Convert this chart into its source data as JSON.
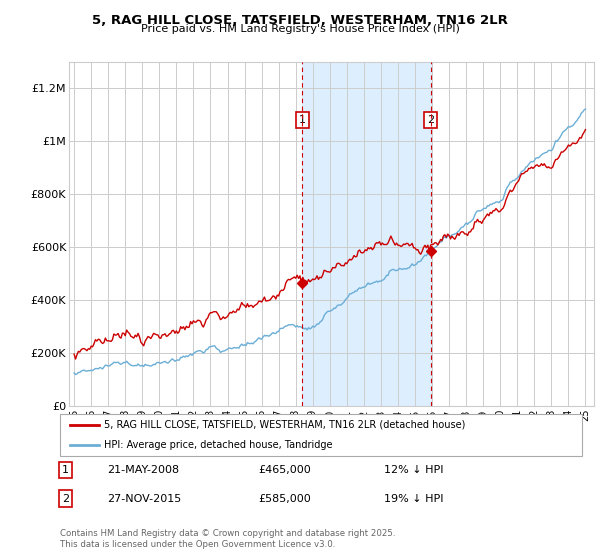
{
  "title": "5, RAG HILL CLOSE, TATSFIELD, WESTERHAM, TN16 2LR",
  "subtitle": "Price paid vs. HM Land Registry's House Price Index (HPI)",
  "x_start_year": 1995,
  "x_end_year": 2025,
  "y_ticks": [
    0,
    200000,
    400000,
    600000,
    800000,
    1000000,
    1200000
  ],
  "y_tick_labels": [
    "£0",
    "£200K",
    "£400K",
    "£600K",
    "£800K",
    "£1M",
    "£1.2M"
  ],
  "y_max": 1300000,
  "hpi_color": "#6baed6",
  "price_color": "#cc0000",
  "transaction1_year": 2008.39,
  "transaction1_price": 465000,
  "transaction1_label": "1",
  "transaction1_date": "21-MAY-2008",
  "transaction1_pct": "12% ↓ HPI",
  "transaction2_year": 2015.91,
  "transaction2_price": 585000,
  "transaction2_label": "2",
  "transaction2_date": "27-NOV-2015",
  "transaction2_pct": "19% ↓ HPI",
  "shaded_region_color": "#ddeeff",
  "legend_line1": "5, RAG HILL CLOSE, TATSFIELD, WESTERHAM, TN16 2LR (detached house)",
  "legend_line2": "HPI: Average price, detached house, Tandridge",
  "footnote": "Contains HM Land Registry data © Crown copyright and database right 2025.\nThis data is licensed under the Open Government Licence v3.0.",
  "background_color": "#ffffff",
  "grid_color": "#cccccc",
  "x_tick_labels": [
    "95",
    "96",
    "97",
    "98",
    "99",
    "00",
    "01",
    "02",
    "03",
    "04",
    "05",
    "06",
    "07",
    "08",
    "09",
    "10",
    "11",
    "12",
    "13",
    "14",
    "15",
    "16",
    "17",
    "18",
    "19",
    "20",
    "21",
    "22",
    "23",
    "24",
    "25"
  ]
}
